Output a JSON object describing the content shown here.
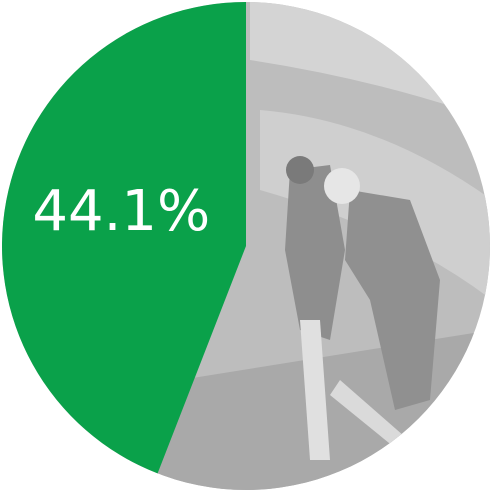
{
  "chart_data": {
    "type": "pie",
    "values": [
      44.1
    ],
    "value_labels": [
      "44.1%"
    ],
    "color": "#0aa14a"
  }
}
